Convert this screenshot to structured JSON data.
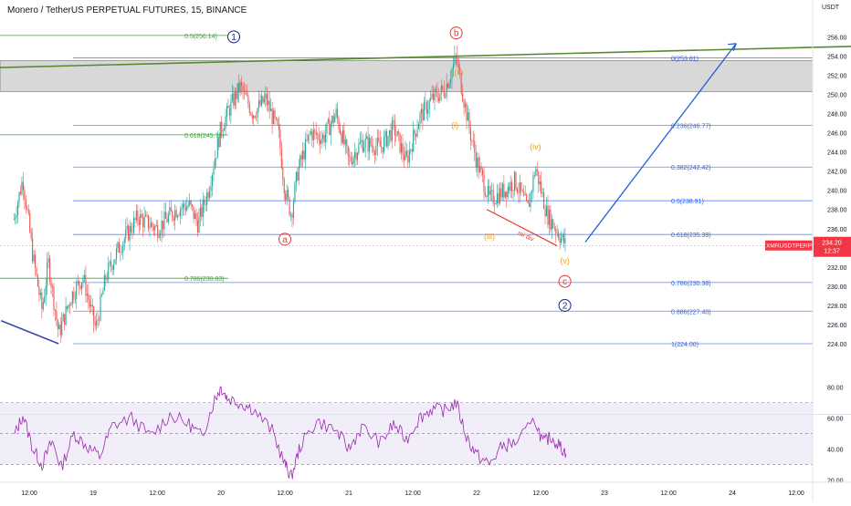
{
  "header": {
    "title": "Monero / TetherUS PERPETUAL FUTURES, 15, BINANCE",
    "currency": "USDT"
  },
  "colors": {
    "up": "#26a69a",
    "down": "#ef5350",
    "fib_blue": "#2962ff",
    "fib_green": "#43a047",
    "wave_red": "#e53935",
    "wave_orange": "#f59e0b",
    "wave_navy": "#1a237e",
    "rsi": "#9c27b0",
    "trend": "#558b2f",
    "price_tag": "#f23645"
  },
  "price_tag": {
    "symbol": "XMRUSDTPERP",
    "price": "234.20",
    "countdown": "12:37"
  },
  "fib_blue": [
    {
      "ratio": "0",
      "price": 253.81,
      "label": "0(253.81)"
    },
    {
      "ratio": "0.236",
      "price": 246.77,
      "label": "0.236(246.77)"
    },
    {
      "ratio": "0.382",
      "price": 242.42,
      "label": "0.382(242.42)"
    },
    {
      "ratio": "0.5",
      "price": 238.91,
      "label": "0.5(238.91)"
    },
    {
      "ratio": "0.618",
      "price": 235.39,
      "label": "0.618(235.39)"
    },
    {
      "ratio": "0.786",
      "price": 230.38,
      "label": "0.786(230.38)"
    },
    {
      "ratio": "0.886",
      "price": 227.4,
      "label": "0.886(227.40)"
    },
    {
      "ratio": "1",
      "price": 224.0,
      "label": "1(224.00)"
    }
  ],
  "fib_green": [
    {
      "ratio": "0.5",
      "price": 256.14,
      "label": "0.5(256.14)"
    },
    {
      "ratio": "0.618",
      "price": 245.78,
      "label": "0.618(245.78)"
    },
    {
      "ratio": "0.786",
      "price": 230.83,
      "label": "0.786(230.83)"
    }
  ],
  "waves": [
    {
      "text": "1",
      "color": "navy",
      "circle": true,
      "x": 20.1,
      "price": 256.0
    },
    {
      "text": "b",
      "color": "red",
      "circle": true,
      "x": 21.84,
      "price": 256.4
    },
    {
      "text": "a",
      "color": "red",
      "circle": true,
      "x": 20.5,
      "price": 234.9
    },
    {
      "text": "c",
      "color": "red",
      "circle": true,
      "x": 22.69,
      "price": 230.5
    },
    {
      "text": "2",
      "color": "navy",
      "circle": true,
      "x": 22.69,
      "price": 228.0
    },
    {
      "text": "(ii)",
      "color": "orange",
      "circle": false,
      "x": 21.86,
      "price": 252.4
    },
    {
      "text": "(i)",
      "color": "orange",
      "circle": false,
      "x": 21.83,
      "price": 246.8
    },
    {
      "text": "(iii)",
      "color": "orange",
      "circle": false,
      "x": 22.1,
      "price": 235.2
    },
    {
      "text": "(iv)",
      "color": "orange",
      "circle": false,
      "x": 22.46,
      "price": 244.6
    },
    {
      "text": "(v)",
      "color": "orange",
      "circle": false,
      "x": 22.69,
      "price": 232.7
    }
  ],
  "rsi_div_label": "rsi div",
  "chart_data": {
    "type": "candlestick",
    "x_unit": "day",
    "y_unit": "USDT",
    "ylim": [
      222.8,
      257.5
    ],
    "yticks": [
      224,
      226,
      228,
      230,
      232,
      234,
      236,
      238,
      240,
      242,
      244,
      246,
      248,
      250,
      252,
      254,
      256
    ],
    "xtick_labels": [
      {
        "x": 18.5,
        "label": "12:00"
      },
      {
        "x": 19,
        "label": "19"
      },
      {
        "x": 19.5,
        "label": "12:00"
      },
      {
        "x": 20,
        "label": "20"
      },
      {
        "x": 20.5,
        "label": "12:00"
      },
      {
        "x": 21,
        "label": "21"
      },
      {
        "x": 21.5,
        "label": "12:00"
      },
      {
        "x": 22,
        "label": "22"
      },
      {
        "x": 22.5,
        "label": "12:00"
      },
      {
        "x": 23,
        "label": "23"
      },
      {
        "x": 23.5,
        "label": "12:00"
      },
      {
        "x": 24,
        "label": "24"
      },
      {
        "x": 24.5,
        "label": "12:00"
      }
    ],
    "price_path": [
      [
        18.38,
        237.0
      ],
      [
        18.45,
        241.2
      ],
      [
        18.53,
        233.0
      ],
      [
        18.6,
        227.5
      ],
      [
        18.65,
        232.5
      ],
      [
        18.73,
        225.0
      ],
      [
        18.83,
        229.0
      ],
      [
        18.92,
        231.0
      ],
      [
        19.02,
        225.5
      ],
      [
        19.1,
        231.0
      ],
      [
        19.2,
        234.0
      ],
      [
        19.35,
        237.2
      ],
      [
        19.5,
        236.0
      ],
      [
        19.65,
        238.0
      ],
      [
        19.75,
        238.5
      ],
      [
        19.82,
        236.5
      ],
      [
        19.9,
        240.0
      ],
      [
        20.0,
        246.5
      ],
      [
        20.1,
        249.5
      ],
      [
        20.15,
        250.8
      ],
      [
        20.25,
        248.0
      ],
      [
        20.35,
        249.5
      ],
      [
        20.45,
        246.0
      ],
      [
        20.5,
        240.0
      ],
      [
        20.55,
        237.5
      ],
      [
        20.6,
        242.0
      ],
      [
        20.7,
        246.0
      ],
      [
        20.8,
        245.5
      ],
      [
        20.9,
        248.0
      ],
      [
        21.0,
        243.0
      ],
      [
        21.1,
        245.0
      ],
      [
        21.25,
        244.5
      ],
      [
        21.35,
        246.5
      ],
      [
        21.45,
        243.0
      ],
      [
        21.55,
        247.5
      ],
      [
        21.65,
        249.5
      ],
      [
        21.75,
        250.5
      ],
      [
        21.84,
        253.8
      ],
      [
        21.9,
        249.5
      ],
      [
        21.95,
        246.0
      ],
      [
        22.0,
        243.0
      ],
      [
        22.1,
        239.0
      ],
      [
        22.2,
        239.8
      ],
      [
        22.3,
        241.0
      ],
      [
        22.4,
        238.0
      ],
      [
        22.46,
        242.4
      ],
      [
        22.55,
        237.5
      ],
      [
        22.62,
        236.0
      ],
      [
        22.7,
        234.2
      ]
    ],
    "rsi": {
      "ylim": [
        17,
        86
      ],
      "yticks": [
        20,
        40,
        60,
        80
      ],
      "band": [
        30,
        70
      ],
      "mid": 50,
      "values": [
        [
          18.38,
          48
        ],
        [
          18.45,
          62
        ],
        [
          18.53,
          40
        ],
        [
          18.6,
          30
        ],
        [
          18.68,
          45
        ],
        [
          18.75,
          28
        ],
        [
          18.85,
          50
        ],
        [
          18.95,
          42
        ],
        [
          19.05,
          35
        ],
        [
          19.15,
          55
        ],
        [
          19.3,
          60
        ],
        [
          19.45,
          48
        ],
        [
          19.6,
          62
        ],
        [
          19.75,
          56
        ],
        [
          19.85,
          48
        ],
        [
          19.95,
          72
        ],
        [
          20.0,
          80
        ],
        [
          20.05,
          73
        ],
        [
          20.15,
          70
        ],
        [
          20.25,
          66
        ],
        [
          20.4,
          52
        ],
        [
          20.5,
          30
        ],
        [
          20.55,
          22
        ],
        [
          20.62,
          42
        ],
        [
          20.75,
          58
        ],
        [
          20.9,
          52
        ],
        [
          21.0,
          40
        ],
        [
          21.1,
          54
        ],
        [
          21.25,
          44
        ],
        [
          21.35,
          56
        ],
        [
          21.45,
          46
        ],
        [
          21.55,
          60
        ],
        [
          21.65,
          66
        ],
        [
          21.75,
          65
        ],
        [
          21.84,
          70
        ],
        [
          21.92,
          48
        ],
        [
          22.0,
          36
        ],
        [
          22.1,
          30
        ],
        [
          22.2,
          42
        ],
        [
          22.3,
          44
        ],
        [
          22.46,
          58
        ],
        [
          22.52,
          44
        ],
        [
          22.58,
          48
        ],
        [
          22.65,
          42
        ],
        [
          22.7,
          37
        ]
      ]
    }
  }
}
